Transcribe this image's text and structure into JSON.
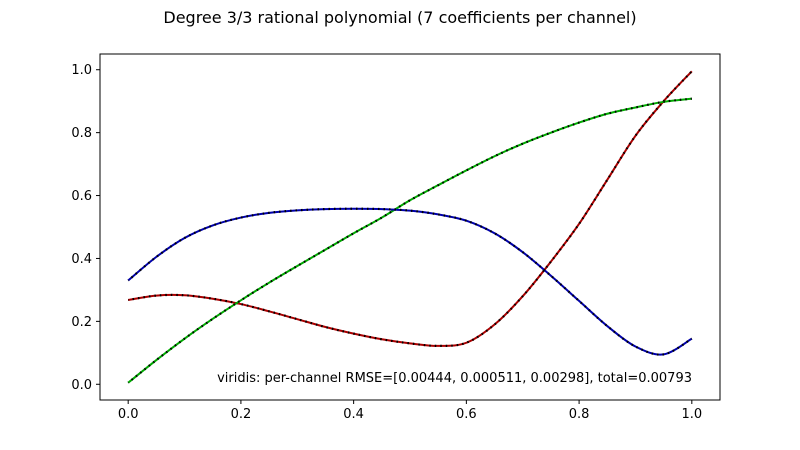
{
  "chart_data": {
    "type": "line",
    "title": "Degree 3/3 rational polynomial (7 coefficients per channel)",
    "xlabel": "",
    "ylabel": "",
    "xlim": [
      -0.05,
      1.05
    ],
    "ylim": [
      -0.05,
      1.05
    ],
    "xticks": [
      "0.0",
      "0.2",
      "0.4",
      "0.6",
      "0.8",
      "1.0"
    ],
    "yticks": [
      "0.0",
      "0.2",
      "0.4",
      "0.6",
      "0.8",
      "1.0"
    ],
    "grid": false,
    "annotation": "viridis: per-channel RMSE=[0.00444, 0.000511, 0.00298], total=0.00793",
    "x": [
      0.0,
      0.05,
      0.1,
      0.15,
      0.2,
      0.25,
      0.3,
      0.35,
      0.4,
      0.45,
      0.5,
      0.55,
      0.6,
      0.65,
      0.7,
      0.75,
      0.8,
      0.85,
      0.9,
      0.95,
      1.0
    ],
    "series": [
      {
        "color": "#aa0000",
        "values": [
          0.268,
          0.282,
          0.283,
          0.272,
          0.255,
          0.232,
          0.207,
          0.182,
          0.161,
          0.143,
          0.13,
          0.122,
          0.132,
          0.19,
          0.28,
          0.39,
          0.51,
          0.65,
          0.79,
          0.9,
          0.995
        ]
      },
      {
        "color": "#00aa00",
        "values": [
          0.005,
          0.077,
          0.145,
          0.208,
          0.267,
          0.323,
          0.376,
          0.428,
          0.48,
          0.53,
          0.585,
          0.633,
          0.68,
          0.725,
          0.765,
          0.8,
          0.832,
          0.86,
          0.88,
          0.898,
          0.908
        ]
      },
      {
        "color": "#0000aa",
        "values": [
          0.33,
          0.405,
          0.465,
          0.505,
          0.53,
          0.545,
          0.553,
          0.557,
          0.558,
          0.557,
          0.552,
          0.54,
          0.52,
          0.48,
          0.42,
          0.345,
          0.265,
          0.185,
          0.12,
          0.095,
          0.145
        ]
      }
    ]
  }
}
